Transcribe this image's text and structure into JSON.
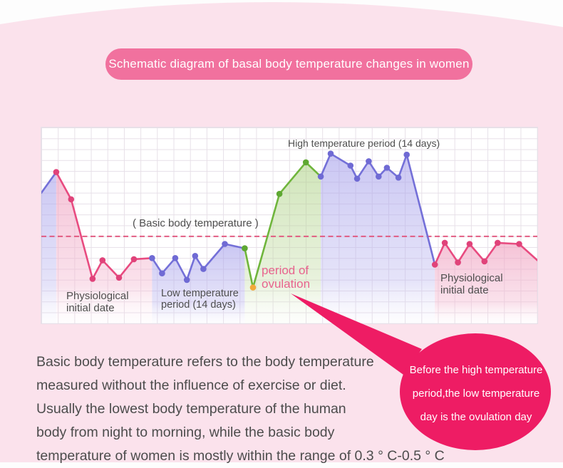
{
  "header": {
    "title": "Schematic diagram of basal body temperature changes in women"
  },
  "colors": {
    "page_background_pink": "#fbe2ec",
    "title_pill_pink": "#f1719e",
    "bubble_rose": "#ee1c64",
    "line_pink": "#e84b80",
    "line_purple": "#7470d8",
    "line_green": "#6fb53c",
    "ovulation_dot_orange": "#f2a93b",
    "baseline_dashed_pink": "#e1547c",
    "grid_line": "#e7e0e8",
    "label_gray": "#4f4f4f",
    "ovulation_label_pink": "#e8638e"
  },
  "chart_data": {
    "type": "line",
    "title": "Schematic diagram of basal body temperature changes in women",
    "xlabel": "",
    "ylabel": "",
    "x_unit": "days (grid columns, no numeric axis shown)",
    "y_unit": "relative basal body temperature (grid rows above chart bottom, no numeric axis shown)",
    "xlim": [
      0,
      30
    ],
    "ylim": [
      0,
      18
    ],
    "grid": "on",
    "legend": "none",
    "baseline": {
      "label": "( Basic body temperature )",
      "y": 8.0,
      "style": "dashed",
      "color": "#e1547c"
    },
    "series": [
      {
        "name": "previous-cycle-tail",
        "period": "end of previous low temperature period",
        "color": "#7470d8",
        "dot_color": "#6f6ad4",
        "fill": "purpleFill",
        "dot_skip": "both",
        "points": [
          [
            0,
            12.0
          ],
          [
            0.9,
            13.9
          ]
        ]
      },
      {
        "name": "menstrual-period-left",
        "period": "Physiological initial date",
        "color": "#e84b80",
        "dot_color": "#e0437a",
        "fill": "pinkFill",
        "dot_skip": "last",
        "points": [
          [
            0.9,
            13.9
          ],
          [
            1.8,
            11.4
          ],
          [
            3.1,
            4.1
          ],
          [
            3.7,
            5.8
          ],
          [
            4.7,
            4.2
          ],
          [
            5.6,
            5.9
          ],
          [
            6.7,
            6.0
          ]
        ]
      },
      {
        "name": "low-temperature-period",
        "period": "Low temperature period (14 days)",
        "color": "#7470d8",
        "dot_color": "#6f6ad4",
        "fill": "purpleFill",
        "dot_skip": "last",
        "points": [
          [
            6.7,
            6.0
          ],
          [
            7.3,
            4.6
          ],
          [
            8.1,
            6.0
          ],
          [
            8.8,
            4.0
          ],
          [
            9.3,
            6.2
          ],
          [
            9.8,
            5.0
          ],
          [
            11.1,
            7.3
          ],
          [
            12.3,
            6.9
          ]
        ]
      },
      {
        "name": "ovulation-period",
        "period": "period of ovulation",
        "color": "#6fb53c",
        "dot_color": "#5ea832",
        "fill": "greenFill",
        "dot_skip": "last",
        "special_dots": {
          "1": "#f2a93b"
        },
        "points": [
          [
            12.3,
            6.9
          ],
          [
            12.8,
            3.3
          ],
          [
            14.4,
            11.9
          ],
          [
            16.0,
            14.8
          ],
          [
            16.9,
            13.5
          ]
        ]
      },
      {
        "name": "high-temperature-period",
        "period": "High temperature period (14 days)",
        "color": "#7470d8",
        "dot_color": "#6f6ad4",
        "fill": "purpleFill",
        "dot_skip": "last",
        "points": [
          [
            16.9,
            13.5
          ],
          [
            17.5,
            15.6
          ],
          [
            18.7,
            14.5
          ],
          [
            19.1,
            13.3
          ],
          [
            19.8,
            14.9
          ],
          [
            20.4,
            13.5
          ],
          [
            20.9,
            14.3
          ],
          [
            21.6,
            13.4
          ],
          [
            22.1,
            15.5
          ],
          [
            23.8,
            5.4
          ]
        ]
      },
      {
        "name": "menstrual-period-right",
        "period": "Physiological initial date",
        "color": "#e84b80",
        "dot_color": "#e0437a",
        "fill": "pinkFill",
        "dot_skip": "last",
        "points": [
          [
            23.8,
            5.4
          ],
          [
            24.4,
            7.4
          ],
          [
            25.2,
            5.6
          ],
          [
            25.9,
            7.3
          ],
          [
            26.8,
            5.7
          ],
          [
            27.6,
            7.4
          ],
          [
            28.9,
            7.3
          ],
          [
            30,
            5.8
          ]
        ]
      }
    ],
    "annotations": {
      "baseline_label": "( Basic body temperature )",
      "high_temp_label": "High temperature period (14 days)",
      "phys_left": [
        "Physiological",
        "initial date"
      ],
      "low_temp": [
        "Low temperature",
        "period (14 days)"
      ],
      "ovulation": [
        "period of",
        "ovulation"
      ],
      "phys_right": [
        "Physiological",
        "initial date"
      ]
    }
  },
  "bubble": {
    "line1": "Before the high temperature",
    "line2": "period,the low temperature",
    "line3": "day is the ovulation day"
  },
  "paragraph": {
    "lines": [
      "Basic body temperature refers to the body temperature",
      "measured without the influence of exercise or diet.",
      "Usually the lowest body temperature of the human",
      "body from night to morning, while the basic body",
      "temperature of women is mostly within the range of 0.3 ° C-0.5 ° C"
    ]
  }
}
